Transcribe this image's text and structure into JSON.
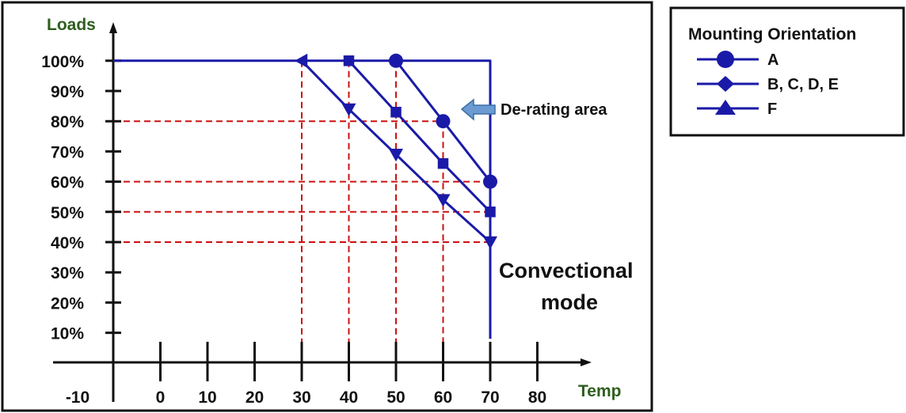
{
  "chart_data": {
    "type": "line",
    "xlabel": "Temp",
    "ylabel": "Loads",
    "x_ticks": [
      -10,
      0,
      10,
      20,
      30,
      40,
      50,
      60,
      70,
      80
    ],
    "y_ticks": [
      "10%",
      "20%",
      "30%",
      "40%",
      "50%",
      "60%",
      "70%",
      "80%",
      "90%",
      "100%"
    ],
    "xlim": [
      -10,
      80
    ],
    "ylim": [
      0,
      100
    ],
    "series": [
      {
        "name": "A",
        "marker": "circle",
        "x": [
          50,
          60,
          70
        ],
        "y": [
          100,
          80,
          60
        ]
      },
      {
        "name": "B, C, D, E",
        "marker": "diamond",
        "x": [
          40,
          50,
          60,
          70
        ],
        "y": [
          100,
          83,
          66,
          50
        ]
      },
      {
        "name": "F",
        "marker": "triangle",
        "x": [
          30,
          40,
          50,
          60,
          70
        ],
        "y": [
          100,
          84,
          69,
          54,
          40
        ]
      }
    ],
    "base_line": {
      "x": [
        -10,
        70,
        70
      ],
      "y": [
        100,
        100,
        8
      ]
    },
    "reference_lines": {
      "horizontal": [
        {
          "y": 80,
          "x_end": 60
        },
        {
          "y": 60,
          "x_end": 70
        },
        {
          "y": 50,
          "x_end": 70
        },
        {
          "y": 40,
          "x_end": 70
        }
      ],
      "vertical": [
        {
          "x": 30,
          "y_top": 100
        },
        {
          "x": 40,
          "y_top": 100
        },
        {
          "x": 50,
          "y_top": 100
        },
        {
          "x": 60,
          "y_top": 80
        }
      ]
    },
    "annotations": {
      "derating": "De-rating area",
      "mode_line1": "Convectional",
      "mode_line2": "mode"
    },
    "legend": {
      "title": "Mounting Orientation",
      "position": "top-right",
      "items": [
        {
          "label": "A",
          "marker": "circle"
        },
        {
          "label": "B, C, D, E",
          "marker": "diamond"
        },
        {
          "label": "F",
          "marker": "triangle"
        }
      ]
    },
    "colors": {
      "series": "#1a1aa8",
      "reference": "#cc1111",
      "axis": "#111111",
      "axis_title": "#2e5e1e",
      "arrow": "#6b9bd1",
      "arrow_stroke": "#3a6ea5"
    }
  }
}
